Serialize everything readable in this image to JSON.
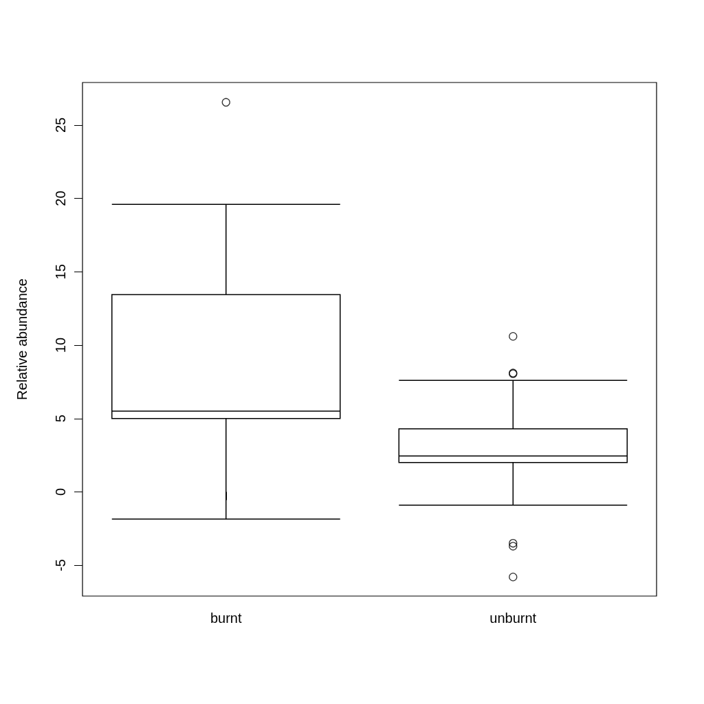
{
  "chart_data": {
    "type": "box",
    "ylabel": "Relative abundance",
    "categories": [
      "burnt",
      "unburnt"
    ],
    "boxes": [
      {
        "low": -1.85,
        "q1": 5.0,
        "median": 5.5,
        "q3": 13.45,
        "high": 19.6,
        "outliers": [
          26.55
        ]
      },
      {
        "low": -0.9,
        "q1": 2.0,
        "median": 2.45,
        "q3": 4.3,
        "high": 7.6,
        "outliers": [
          10.6,
          8.05,
          8.1,
          -3.5,
          -3.7,
          -5.8
        ]
      }
    ],
    "color": "#000000",
    "ylim": [
      -7.1,
      27.9
    ],
    "yticks": [
      -5,
      0,
      5,
      10,
      15,
      20,
      25
    ],
    "grid": false,
    "marker": "circle"
  }
}
